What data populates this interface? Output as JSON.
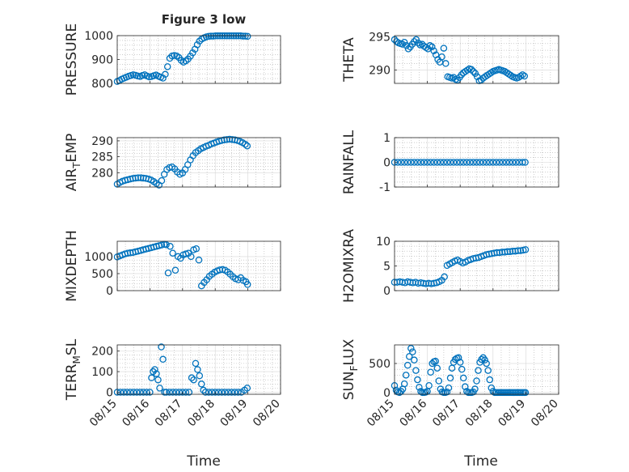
{
  "figure": {
    "title": "Figure 3 low",
    "marker_color": "#0072BD",
    "axis_color": "#262626",
    "grid_color": "#b0b0b0"
  },
  "chart_data": [
    {
      "id": "pressure",
      "type": "scatter",
      "ylabel": "PRESSURE",
      "ylabel_sub": "",
      "yticks": [
        "800",
        "900",
        "1000"
      ],
      "ylim": [
        800,
        1000
      ],
      "x": [
        0,
        0.07,
        0.14,
        0.21,
        0.28,
        0.35,
        0.42,
        0.49,
        0.56,
        0.63,
        0.7,
        0.77,
        0.84,
        0.91,
        0.98,
        1.05,
        1.12,
        1.19,
        1.26,
        1.33,
        1.4,
        1.47,
        1.54,
        1.61,
        1.68,
        1.75,
        1.82,
        1.89,
        1.96,
        2.03,
        2.1,
        2.17,
        2.24,
        2.31,
        2.38,
        2.45,
        2.52,
        2.59,
        2.66,
        2.73,
        2.8,
        2.87,
        2.94,
        3.01,
        3.08,
        3.15,
        3.22,
        3.29,
        3.36,
        3.43,
        3.5,
        3.57,
        3.64,
        3.71,
        3.78,
        3.85,
        3.92,
        3.99
      ],
      "values": [
        808,
        812,
        818,
        822,
        826,
        830,
        833,
        836,
        834,
        831,
        829,
        833,
        836,
        831,
        827,
        829,
        832,
        835,
        830,
        826,
        822,
        838,
        870,
        905,
        915,
        917,
        915,
        908,
        896,
        889,
        894,
        902,
        914,
        928,
        943,
        962,
        977,
        986,
        991,
        995,
        997,
        998,
        998,
        999,
        999,
        999,
        999,
        999,
        999,
        999,
        999,
        999,
        999,
        999,
        999,
        998,
        998,
        997
      ]
    },
    {
      "id": "theta",
      "type": "scatter",
      "ylabel": "THETA",
      "ylabel_sub": "",
      "yticks": [
        "290",
        "295"
      ],
      "ylim": [
        288,
        295.2
      ],
      "x": [
        0,
        0.06,
        0.12,
        0.18,
        0.24,
        0.3,
        0.36,
        0.42,
        0.48,
        0.54,
        0.6,
        0.66,
        0.72,
        0.78,
        0.84,
        0.9,
        0.96,
        1.02,
        1.08,
        1.14,
        1.2,
        1.26,
        1.32,
        1.38,
        1.44,
        1.5,
        1.56,
        1.62,
        1.68,
        1.74,
        1.8,
        1.86,
        1.92,
        1.98,
        2.04,
        2.1,
        2.16,
        2.22,
        2.28,
        2.34,
        2.4,
        2.46,
        2.52,
        2.58,
        2.64,
        2.7,
        2.76,
        2.82,
        2.88,
        2.94,
        3.0,
        3.06,
        3.12,
        3.18,
        3.24,
        3.3,
        3.36,
        3.42,
        3.48,
        3.54,
        3.6,
        3.66,
        3.72,
        3.78,
        3.84,
        3.9,
        3.96
      ],
      "values": [
        294.6,
        294.3,
        294.1,
        294.0,
        293.9,
        294.2,
        293.7,
        293.2,
        293.5,
        293.9,
        294.3,
        294.6,
        294.1,
        293.8,
        293.9,
        293.6,
        293.4,
        293.2,
        293.7,
        293.5,
        292.9,
        292.3,
        291.6,
        291.2,
        292.0,
        293.3,
        291.0,
        289.0,
        288.9,
        288.8,
        288.9,
        288.6,
        288.5,
        288.9,
        289.3,
        289.6,
        289.8,
        290.0,
        290.2,
        290.1,
        289.8,
        289.5,
        289.0,
        288.4,
        288.5,
        288.8,
        289.0,
        289.2,
        289.4,
        289.6,
        289.8,
        289.9,
        290.0,
        290.1,
        290.0,
        289.9,
        289.8,
        289.6,
        289.4,
        289.2,
        289.0,
        288.9,
        288.8,
        288.9,
        289.1,
        289.3,
        289.1
      ],
      "render_offset": 0
    },
    {
      "id": "air_temp",
      "type": "scatter",
      "ylabel": "AIR",
      "ylabel_sub": "T",
      "ylabel_suffix": "EMP",
      "yticks": [
        "280",
        "285",
        "290"
      ],
      "ylim": [
        275.5,
        291
      ],
      "x": [
        0,
        0.08,
        0.16,
        0.24,
        0.32,
        0.4,
        0.48,
        0.56,
        0.64,
        0.72,
        0.8,
        0.88,
        0.96,
        1.04,
        1.12,
        1.2,
        1.28,
        1.36,
        1.44,
        1.52,
        1.6,
        1.68,
        1.76,
        1.84,
        1.92,
        2.0,
        2.08,
        2.16,
        2.24,
        2.32,
        2.4,
        2.48,
        2.56,
        2.64,
        2.72,
        2.8,
        2.88,
        2.96,
        3.04,
        3.12,
        3.2,
        3.28,
        3.36,
        3.44,
        3.52,
        3.6,
        3.68,
        3.76,
        3.84,
        3.92,
        3.98
      ],
      "values": [
        276.4,
        276.9,
        277.3,
        277.6,
        277.8,
        278.0,
        278.2,
        278.3,
        278.4,
        278.4,
        278.3,
        278.2,
        278.0,
        277.7,
        277.2,
        276.6,
        276.1,
        277.5,
        279.5,
        281.0,
        281.6,
        281.8,
        281.2,
        280.2,
        279.5,
        279.9,
        281.0,
        282.5,
        284.0,
        285.3,
        286.3,
        286.9,
        287.5,
        287.9,
        288.3,
        288.6,
        289.0,
        289.3,
        289.6,
        289.9,
        290.1,
        290.3,
        290.4,
        290.5,
        290.4,
        290.3,
        290.1,
        289.8,
        289.4,
        288.9,
        288.4
      ]
    },
    {
      "id": "rainfall",
      "type": "scatter",
      "ylabel": "RAINFALL",
      "ylabel_sub": "",
      "yticks": [
        "-1",
        "0",
        "1"
      ],
      "ylim": [
        -1,
        1
      ],
      "x": [
        0,
        0.1,
        0.2,
        0.3,
        0.4,
        0.5,
        0.6,
        0.7,
        0.8,
        0.9,
        1.0,
        1.1,
        1.2,
        1.3,
        1.4,
        1.5,
        1.6,
        1.7,
        1.8,
        1.9,
        2.0,
        2.1,
        2.2,
        2.3,
        2.4,
        2.5,
        2.6,
        2.7,
        2.8,
        2.9,
        3.0,
        3.1,
        3.2,
        3.3,
        3.4,
        3.5,
        3.6,
        3.7,
        3.8,
        3.9,
        3.98
      ],
      "values": [
        0,
        0,
        0,
        0,
        0,
        0,
        0,
        0,
        0,
        0,
        0,
        0,
        0,
        0,
        0,
        0,
        0,
        0,
        0,
        0,
        0,
        0,
        0,
        0,
        0,
        0,
        0,
        0,
        0,
        0,
        0,
        0,
        0,
        0,
        0,
        0,
        0,
        0,
        0,
        0,
        0
      ]
    },
    {
      "id": "mixdepth",
      "type": "scatter",
      "ylabel": "MIXDEPTH",
      "ylabel_sub": "",
      "yticks": [
        "0",
        "500",
        "1000"
      ],
      "ylim": [
        0,
        1450
      ],
      "x": [
        0,
        0.08,
        0.16,
        0.24,
        0.32,
        0.4,
        0.48,
        0.56,
        0.64,
        0.72,
        0.8,
        0.88,
        0.96,
        1.04,
        1.12,
        1.2,
        1.28,
        1.36,
        1.44,
        1.5,
        1.56,
        1.62,
        1.7,
        1.78,
        1.86,
        1.94,
        2.02,
        2.1,
        2.18,
        2.26,
        2.34,
        2.42,
        2.5,
        2.58,
        2.66,
        2.74,
        2.82,
        2.9,
        2.98,
        3.06,
        3.14,
        3.22,
        3.3,
        3.38,
        3.46,
        3.54,
        3.62,
        3.7,
        3.78,
        3.86,
        3.94,
        3.99
      ],
      "values": [
        990,
        1020,
        1050,
        1080,
        1100,
        1110,
        1120,
        1140,
        1160,
        1180,
        1200,
        1220,
        1240,
        1260,
        1280,
        1300,
        1320,
        1340,
        1360,
        1350,
        520,
        1300,
        1100,
        600,
        1000,
        950,
        1050,
        1080,
        1100,
        1000,
        1200,
        1230,
        900,
        140,
        240,
        320,
        420,
        480,
        540,
        580,
        610,
        620,
        600,
        550,
        480,
        410,
        350,
        320,
        380,
        300,
        260,
        180
      ]
    },
    {
      "id": "h2omixra",
      "type": "scatter",
      "ylabel": "H2OMIXRA",
      "ylabel_sub": "",
      "yticks": [
        "0",
        "5",
        "10"
      ],
      "ylim": [
        0,
        10
      ],
      "x": [
        0,
        0.08,
        0.16,
        0.24,
        0.32,
        0.4,
        0.48,
        0.56,
        0.64,
        0.72,
        0.8,
        0.88,
        0.96,
        1.04,
        1.12,
        1.2,
        1.28,
        1.36,
        1.44,
        1.52,
        1.6,
        1.68,
        1.76,
        1.84,
        1.92,
        2.0,
        2.08,
        2.16,
        2.24,
        2.32,
        2.4,
        2.48,
        2.56,
        2.64,
        2.72,
        2.8,
        2.88,
        2.96,
        3.04,
        3.12,
        3.2,
        3.28,
        3.36,
        3.44,
        3.52,
        3.6,
        3.68,
        3.76,
        3.84,
        3.92,
        3.99
      ],
      "values": [
        1.7,
        1.7,
        1.8,
        1.7,
        1.6,
        1.8,
        1.7,
        1.6,
        1.7,
        1.5,
        1.6,
        1.5,
        1.4,
        1.5,
        1.4,
        1.5,
        1.6,
        1.8,
        2.1,
        2.8,
        5.1,
        5.4,
        5.7,
        6.0,
        6.2,
        5.9,
        5.6,
        5.8,
        6.1,
        6.3,
        6.5,
        6.6,
        6.7,
        6.9,
        7.1,
        7.3,
        7.4,
        7.5,
        7.6,
        7.7,
        7.7,
        7.8,
        7.8,
        7.9,
        7.9,
        8.0,
        8.0,
        8.1,
        8.1,
        8.2,
        8.3
      ]
    },
    {
      "id": "terr_msl",
      "type": "scatter",
      "ylabel": "TERR",
      "ylabel_sub": "M",
      "ylabel_suffix": "SL",
      "yticks": [
        "0",
        "100",
        "200"
      ],
      "ylim": [
        -10,
        230
      ],
      "x": [
        0,
        0.1,
        0.2,
        0.3,
        0.4,
        0.5,
        0.6,
        0.7,
        0.8,
        0.9,
        1.0,
        1.05,
        1.1,
        1.15,
        1.2,
        1.25,
        1.3,
        1.35,
        1.4,
        1.45,
        1.5,
        1.6,
        1.7,
        1.8,
        1.9,
        2.0,
        2.1,
        2.2,
        2.28,
        2.34,
        2.4,
        2.46,
        2.52,
        2.58,
        2.64,
        2.7,
        2.8,
        2.9,
        3.0,
        3.1,
        3.2,
        3.3,
        3.4,
        3.5,
        3.6,
        3.7,
        3.8,
        3.9,
        3.98
      ],
      "values": [
        0,
        0,
        0,
        0,
        0,
        0,
        0,
        0,
        0,
        0,
        0,
        70,
        100,
        110,
        90,
        60,
        20,
        220,
        160,
        0,
        0,
        0,
        0,
        0,
        0,
        0,
        0,
        0,
        70,
        60,
        140,
        110,
        80,
        40,
        10,
        0,
        0,
        0,
        0,
        0,
        0,
        0,
        0,
        0,
        0,
        0,
        0,
        10,
        20
      ]
    },
    {
      "id": "sun_flux",
      "type": "scatter",
      "ylabel": "SUN",
      "ylabel_sub": "F",
      "ylabel_suffix": "LUX",
      "yticks": [
        "0",
        "500"
      ],
      "ylim": [
        -30,
        820
      ],
      "x": [
        0,
        0.05,
        0.1,
        0.15,
        0.2,
        0.25,
        0.3,
        0.35,
        0.4,
        0.45,
        0.5,
        0.55,
        0.6,
        0.65,
        0.7,
        0.75,
        0.8,
        0.85,
        0.9,
        0.95,
        1.0,
        1.05,
        1.1,
        1.15,
        1.2,
        1.25,
        1.3,
        1.35,
        1.4,
        1.45,
        1.5,
        1.55,
        1.6,
        1.65,
        1.7,
        1.75,
        1.8,
        1.85,
        1.9,
        1.95,
        2.0,
        2.05,
        2.1,
        2.15,
        2.2,
        2.25,
        2.3,
        2.35,
        2.4,
        2.45,
        2.5,
        2.55,
        2.6,
        2.65,
        2.7,
        2.75,
        2.8,
        2.85,
        2.9,
        2.95,
        3.0,
        3.05,
        3.1,
        3.15,
        3.2,
        3.25,
        3.3,
        3.35,
        3.4,
        3.45,
        3.5,
        3.55,
        3.6,
        3.65,
        3.7,
        3.75,
        3.8,
        3.85,
        3.9,
        3.95,
        3.99
      ],
      "values": [
        120,
        40,
        10,
        0,
        20,
        60,
        150,
        300,
        470,
        620,
        760,
        700,
        560,
        380,
        220,
        90,
        20,
        0,
        0,
        5,
        20,
        120,
        350,
        500,
        530,
        540,
        420,
        200,
        60,
        10,
        0,
        0,
        10,
        80,
        250,
        420,
        520,
        570,
        590,
        600,
        520,
        400,
        250,
        100,
        20,
        0,
        0,
        0,
        10,
        60,
        200,
        380,
        520,
        570,
        600,
        560,
        500,
        380,
        220,
        80,
        20,
        0,
        0,
        0,
        0,
        0,
        0,
        0,
        0,
        0,
        0,
        0,
        0,
        0,
        0,
        0,
        0,
        0,
        0,
        0,
        0
      ]
    }
  ],
  "shared_x": {
    "xlim": [
      0,
      5
    ],
    "tick_positions": [
      0,
      1,
      2,
      3,
      4,
      5
    ],
    "tick_labels": [
      "08/15",
      "08/16",
      "08/17",
      "08/18",
      "08/19",
      "08/20"
    ],
    "xlabel": "Time"
  }
}
